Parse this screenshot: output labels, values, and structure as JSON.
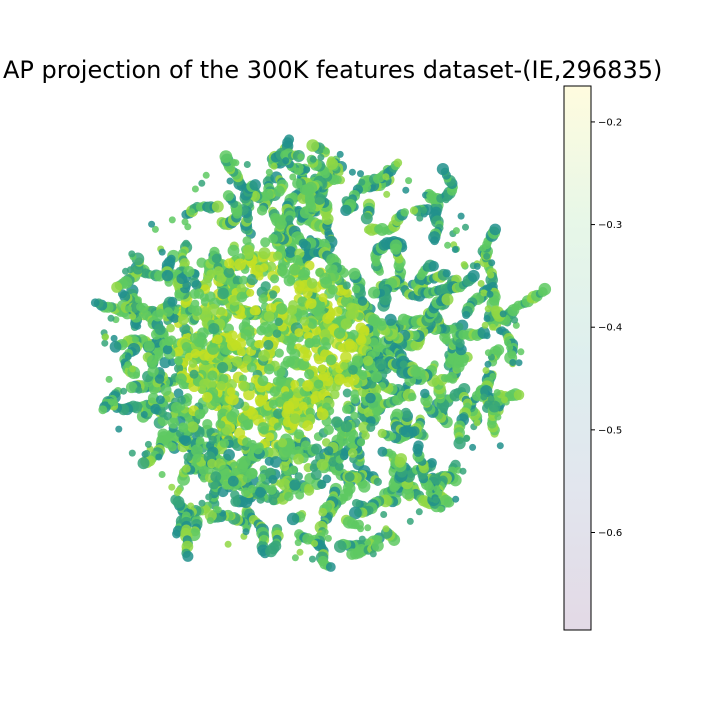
{
  "chart_data": {
    "type": "scatter",
    "title": "AP projection of the 300K features dataset-(IE,296835)",
    "xlabel": "",
    "ylabel": "",
    "axes_visible": false,
    "grid": false,
    "legend": "none",
    "colorbar": {
      "colormap": "viridis",
      "alpha": 0.15,
      "range": [
        -0.695,
        -0.165
      ],
      "ticks": [
        -0.2,
        -0.3,
        -0.4,
        -0.5,
        -0.6
      ],
      "tick_labels": [
        "−0.2",
        "−0.3",
        "−0.4",
        "−0.5",
        "−0.6"
      ]
    },
    "point_colors": {
      "dark": "#21908c",
      "mid": "#35a57a",
      "light": "#5ec962",
      "yellow_green": "#8fd744",
      "yellow": "#c2df23"
    }
  }
}
